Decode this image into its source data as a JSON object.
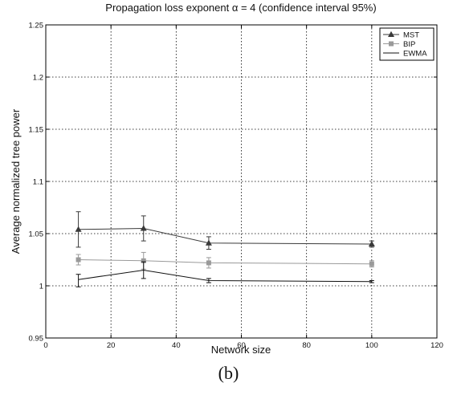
{
  "chart_data": {
    "type": "line",
    "title": "Propagation loss exponent α = 4 (confidence interval 95%)",
    "xlabel": "Network size",
    "ylabel": "Average normalized tree power",
    "xlim": [
      0,
      120
    ],
    "ylim": [
      0.95,
      1.25
    ],
    "xticks": [
      0,
      20,
      40,
      60,
      80,
      100,
      120
    ],
    "yticks": [
      0.95,
      1,
      1.05,
      1.1,
      1.15,
      1.2,
      1.25
    ],
    "xtick_labels": [
      "0",
      "20",
      "40",
      "60",
      "80",
      "100",
      "120"
    ],
    "ytick_labels": [
      "0.95",
      "1",
      "1.05",
      "1.1",
      "1.15",
      "1.2",
      "1.25"
    ],
    "grid": true,
    "legend_position": "top-right",
    "x": [
      10,
      30,
      50,
      100
    ],
    "series": [
      {
        "name": "MST",
        "color": "#3a3a3a",
        "marker": "triangle",
        "values": [
          1.054,
          1.055,
          1.041,
          1.04
        ],
        "err_low": [
          1.037,
          1.043,
          1.035,
          1.037
        ],
        "err_high": [
          1.071,
          1.067,
          1.047,
          1.043
        ]
      },
      {
        "name": "BIP",
        "color": "#9a9a9a",
        "marker": "square",
        "values": [
          1.025,
          1.024,
          1.022,
          1.021
        ],
        "err_low": [
          1.02,
          1.016,
          1.017,
          1.018
        ],
        "err_high": [
          1.03,
          1.032,
          1.027,
          1.024
        ]
      },
      {
        "name": "EWMA",
        "color": "#111111",
        "marker": "none",
        "values": [
          1.006,
          1.015,
          1.005,
          1.004
        ],
        "err_low": [
          0.999,
          1.007,
          1.003,
          1.003
        ],
        "err_high": [
          1.011,
          1.023,
          1.007,
          1.005
        ]
      }
    ]
  },
  "caption": "(b)"
}
